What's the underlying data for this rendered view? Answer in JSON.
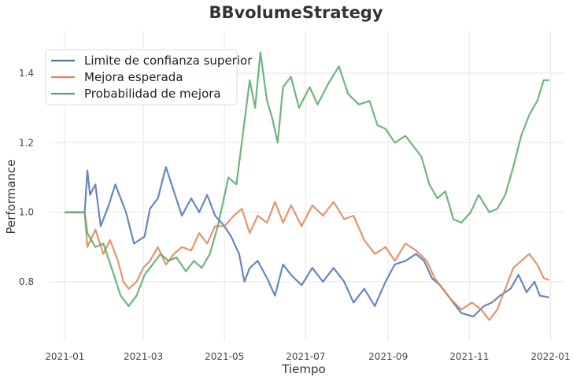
{
  "chart_data": {
    "type": "line",
    "title": "BBvolumeStrategy",
    "xlabel": "Tiempo",
    "ylabel": "Performance",
    "xlim": [
      "2020-12-20",
      "2022-01-12"
    ],
    "ylim": [
      0.63,
      1.52
    ],
    "grid": true,
    "legend_position": "top-left",
    "x_ticks": [
      {
        "date": "2021-01-01",
        "label": "2021-01"
      },
      {
        "date": "2021-03-01",
        "label": "2021-03"
      },
      {
        "date": "2021-05-01",
        "label": "2021-05"
      },
      {
        "date": "2021-07-01",
        "label": "2021-07"
      },
      {
        "date": "2021-09-01",
        "label": "2021-09"
      },
      {
        "date": "2021-11-01",
        "label": "2021-11"
      },
      {
        "date": "2022-01-01",
        "label": "2022-01"
      }
    ],
    "y_ticks": [
      {
        "value": 0.8,
        "label": "0.8"
      },
      {
        "value": 1.0,
        "label": "1.0"
      },
      {
        "value": 1.2,
        "label": "1.2"
      },
      {
        "value": 1.4,
        "label": "1.4"
      }
    ],
    "series": [
      {
        "name": "Limite de confianza superior",
        "color": "#4c72b0",
        "points": [
          [
            "2021-01-01",
            1.0
          ],
          [
            "2021-01-16",
            1.0
          ],
          [
            "2021-01-18",
            1.12
          ],
          [
            "2021-01-20",
            1.05
          ],
          [
            "2021-01-24",
            1.08
          ],
          [
            "2021-01-28",
            0.96
          ],
          [
            "2021-02-03",
            1.02
          ],
          [
            "2021-02-08",
            1.08
          ],
          [
            "2021-02-16",
            1.0
          ],
          [
            "2021-02-22",
            0.91
          ],
          [
            "2021-03-02",
            0.93
          ],
          [
            "2021-03-06",
            1.01
          ],
          [
            "2021-03-12",
            1.04
          ],
          [
            "2021-03-18",
            1.13
          ],
          [
            "2021-03-24",
            1.06
          ],
          [
            "2021-03-30",
            0.99
          ],
          [
            "2021-04-06",
            1.04
          ],
          [
            "2021-04-12",
            1.0
          ],
          [
            "2021-04-18",
            1.05
          ],
          [
            "2021-04-24",
            0.99
          ],
          [
            "2021-05-01",
            0.96
          ],
          [
            "2021-05-06",
            0.93
          ],
          [
            "2021-05-12",
            0.88
          ],
          [
            "2021-05-16",
            0.8
          ],
          [
            "2021-05-20",
            0.84
          ],
          [
            "2021-05-26",
            0.86
          ],
          [
            "2021-06-02",
            0.81
          ],
          [
            "2021-06-08",
            0.76
          ],
          [
            "2021-06-14",
            0.85
          ],
          [
            "2021-06-20",
            0.82
          ],
          [
            "2021-06-28",
            0.79
          ],
          [
            "2021-07-06",
            0.84
          ],
          [
            "2021-07-14",
            0.8
          ],
          [
            "2021-07-22",
            0.84
          ],
          [
            "2021-07-30",
            0.8
          ],
          [
            "2021-08-06",
            0.74
          ],
          [
            "2021-08-14",
            0.78
          ],
          [
            "2021-08-22",
            0.73
          ],
          [
            "2021-08-30",
            0.8
          ],
          [
            "2021-09-06",
            0.85
          ],
          [
            "2021-09-14",
            0.86
          ],
          [
            "2021-09-22",
            0.88
          ],
          [
            "2021-09-28",
            0.86
          ],
          [
            "2021-10-04",
            0.81
          ],
          [
            "2021-10-10",
            0.79
          ],
          [
            "2021-10-18",
            0.75
          ],
          [
            "2021-10-26",
            0.71
          ],
          [
            "2021-11-04",
            0.7
          ],
          [
            "2021-11-12",
            0.73
          ],
          [
            "2021-11-18",
            0.74
          ],
          [
            "2021-11-24",
            0.76
          ],
          [
            "2021-12-02",
            0.78
          ],
          [
            "2021-12-08",
            0.82
          ],
          [
            "2021-12-14",
            0.77
          ],
          [
            "2021-12-20",
            0.8
          ],
          [
            "2021-12-24",
            0.76
          ],
          [
            "2021-12-31",
            0.755
          ]
        ]
      },
      {
        "name": "Mejora esperada",
        "color": "#dd8452",
        "points": [
          [
            "2021-01-01",
            1.0
          ],
          [
            "2021-01-16",
            1.0
          ],
          [
            "2021-01-18",
            0.9
          ],
          [
            "2021-01-24",
            0.95
          ],
          [
            "2021-01-30",
            0.88
          ],
          [
            "2021-02-04",
            0.92
          ],
          [
            "2021-02-10",
            0.86
          ],
          [
            "2021-02-14",
            0.8
          ],
          [
            "2021-02-18",
            0.78
          ],
          [
            "2021-02-24",
            0.8
          ],
          [
            "2021-03-01",
            0.84
          ],
          [
            "2021-03-06",
            0.86
          ],
          [
            "2021-03-12",
            0.9
          ],
          [
            "2021-03-18",
            0.85
          ],
          [
            "2021-03-24",
            0.88
          ],
          [
            "2021-03-30",
            0.9
          ],
          [
            "2021-04-06",
            0.89
          ],
          [
            "2021-04-12",
            0.94
          ],
          [
            "2021-04-18",
            0.91
          ],
          [
            "2021-04-24",
            0.96
          ],
          [
            "2021-05-01",
            0.96
          ],
          [
            "2021-05-08",
            0.99
          ],
          [
            "2021-05-14",
            1.01
          ],
          [
            "2021-05-20",
            0.94
          ],
          [
            "2021-05-26",
            0.99
          ],
          [
            "2021-06-02",
            0.97
          ],
          [
            "2021-06-08",
            1.03
          ],
          [
            "2021-06-14",
            0.97
          ],
          [
            "2021-06-20",
            1.02
          ],
          [
            "2021-06-28",
            0.96
          ],
          [
            "2021-07-06",
            1.02
          ],
          [
            "2021-07-14",
            0.99
          ],
          [
            "2021-07-22",
            1.03
          ],
          [
            "2021-07-30",
            0.98
          ],
          [
            "2021-08-06",
            0.99
          ],
          [
            "2021-08-14",
            0.92
          ],
          [
            "2021-08-22",
            0.88
          ],
          [
            "2021-08-30",
            0.9
          ],
          [
            "2021-09-06",
            0.86
          ],
          [
            "2021-09-14",
            0.91
          ],
          [
            "2021-09-22",
            0.89
          ],
          [
            "2021-09-30",
            0.86
          ],
          [
            "2021-10-06",
            0.81
          ],
          [
            "2021-10-12",
            0.78
          ],
          [
            "2021-10-18",
            0.75
          ],
          [
            "2021-10-26",
            0.72
          ],
          [
            "2021-11-03",
            0.74
          ],
          [
            "2021-11-10",
            0.72
          ],
          [
            "2021-11-16",
            0.69
          ],
          [
            "2021-11-22",
            0.72
          ],
          [
            "2021-11-28",
            0.78
          ],
          [
            "2021-12-04",
            0.84
          ],
          [
            "2021-12-10",
            0.86
          ],
          [
            "2021-12-16",
            0.88
          ],
          [
            "2021-12-22",
            0.85
          ],
          [
            "2021-12-27",
            0.81
          ],
          [
            "2021-12-31",
            0.805
          ]
        ]
      },
      {
        "name": "Probabilidad de mejora",
        "color": "#55a868",
        "points": [
          [
            "2021-01-01",
            1.0
          ],
          [
            "2021-01-16",
            1.0
          ],
          [
            "2021-01-18",
            0.94
          ],
          [
            "2021-01-24",
            0.9
          ],
          [
            "2021-01-30",
            0.91
          ],
          [
            "2021-02-06",
            0.83
          ],
          [
            "2021-02-12",
            0.76
          ],
          [
            "2021-02-18",
            0.73
          ],
          [
            "2021-02-24",
            0.76
          ],
          [
            "2021-03-02",
            0.82
          ],
          [
            "2021-03-08",
            0.85
          ],
          [
            "2021-03-14",
            0.88
          ],
          [
            "2021-03-20",
            0.86
          ],
          [
            "2021-03-26",
            0.87
          ],
          [
            "2021-04-02",
            0.83
          ],
          [
            "2021-04-08",
            0.86
          ],
          [
            "2021-04-14",
            0.84
          ],
          [
            "2021-04-20",
            0.88
          ],
          [
            "2021-04-26",
            0.96
          ],
          [
            "2021-04-30",
            1.03
          ],
          [
            "2021-05-04",
            1.1
          ],
          [
            "2021-05-10",
            1.08
          ],
          [
            "2021-05-16",
            1.26
          ],
          [
            "2021-05-20",
            1.38
          ],
          [
            "2021-05-24",
            1.3
          ],
          [
            "2021-05-28",
            1.46
          ],
          [
            "2021-06-02",
            1.32
          ],
          [
            "2021-06-06",
            1.27
          ],
          [
            "2021-06-10",
            1.2
          ],
          [
            "2021-06-14",
            1.36
          ],
          [
            "2021-06-20",
            1.39
          ],
          [
            "2021-06-26",
            1.3
          ],
          [
            "2021-07-04",
            1.36
          ],
          [
            "2021-07-10",
            1.31
          ],
          [
            "2021-07-18",
            1.37
          ],
          [
            "2021-07-26",
            1.42
          ],
          [
            "2021-08-02",
            1.34
          ],
          [
            "2021-08-10",
            1.31
          ],
          [
            "2021-08-18",
            1.32
          ],
          [
            "2021-08-24",
            1.25
          ],
          [
            "2021-08-30",
            1.24
          ],
          [
            "2021-09-06",
            1.2
          ],
          [
            "2021-09-14",
            1.22
          ],
          [
            "2021-09-20",
            1.19
          ],
          [
            "2021-09-26",
            1.16
          ],
          [
            "2021-10-02",
            1.08
          ],
          [
            "2021-10-08",
            1.04
          ],
          [
            "2021-10-14",
            1.06
          ],
          [
            "2021-10-20",
            0.98
          ],
          [
            "2021-10-26",
            0.97
          ],
          [
            "2021-11-02",
            1.0
          ],
          [
            "2021-11-08",
            1.05
          ],
          [
            "2021-11-16",
            1.0
          ],
          [
            "2021-11-22",
            1.01
          ],
          [
            "2021-11-28",
            1.05
          ],
          [
            "2021-12-04",
            1.13
          ],
          [
            "2021-12-10",
            1.22
          ],
          [
            "2021-12-16",
            1.28
          ],
          [
            "2021-12-22",
            1.32
          ],
          [
            "2021-12-27",
            1.38
          ],
          [
            "2021-12-31",
            1.38
          ]
        ]
      }
    ]
  }
}
